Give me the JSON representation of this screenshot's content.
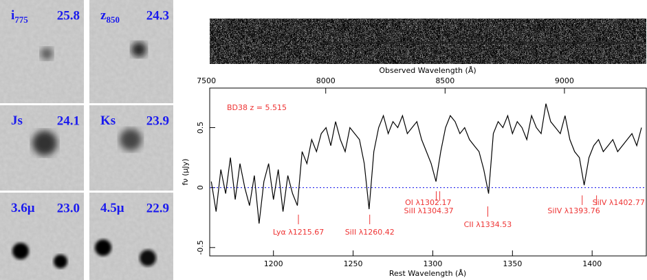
{
  "stamps": [
    {
      "name": "i",
      "sub": "775",
      "mag": "25.8"
    },
    {
      "name": "z",
      "sub": "850",
      "mag": "24.3"
    },
    {
      "name": "Js",
      "mag": "24.1"
    },
    {
      "name": "Ks",
      "mag": "23.9"
    },
    {
      "name": "3.6μ",
      "mag": "23.0"
    },
    {
      "name": "4.5μ",
      "mag": "22.9"
    }
  ],
  "chart_data": {
    "type": "line",
    "title": "BD38   z = 5.515",
    "xlabel": "Rest Wavelength (Å)",
    "x2label": "Observed Wavelength (Å)",
    "ylabel": "fν (μJy)",
    "xlim": [
      1160,
      1434
    ],
    "xticks": [
      1200,
      1250,
      1300,
      1350,
      1400
    ],
    "x2lim": [
      7514,
      9343
    ],
    "x2ticks": [
      7500,
      8000,
      8500,
      9000
    ],
    "ylim": [
      -0.57,
      0.83
    ],
    "yticks": [
      -0.5,
      0,
      0.5
    ],
    "hline": 0,
    "series": [
      {
        "color": "#000000",
        "x": [
          1161,
          1164,
          1167,
          1170,
          1173,
          1176,
          1179,
          1182,
          1185,
          1188,
          1191,
          1194,
          1197,
          1200,
          1203,
          1206,
          1209,
          1212,
          1215,
          1218,
          1221,
          1224,
          1227,
          1230,
          1233,
          1236,
          1239,
          1242,
          1245,
          1248,
          1251,
          1254,
          1257,
          1260,
          1263,
          1266,
          1269,
          1272,
          1275,
          1278,
          1281,
          1284,
          1287,
          1290,
          1293,
          1296,
          1299,
          1302,
          1305,
          1308,
          1311,
          1314,
          1317,
          1320,
          1323,
          1326,
          1329,
          1332,
          1335,
          1338,
          1341,
          1344,
          1347,
          1350,
          1353,
          1356,
          1359,
          1362,
          1365,
          1368,
          1371,
          1374,
          1377,
          1380,
          1383,
          1386,
          1389,
          1392,
          1395,
          1398,
          1401,
          1404,
          1407,
          1410,
          1413,
          1416,
          1419,
          1422,
          1425,
          1428,
          1431
        ],
        "values": [
          0.05,
          -0.2,
          0.15,
          -0.05,
          0.25,
          -0.1,
          0.2,
          0.0,
          -0.15,
          0.1,
          -0.3,
          0.05,
          0.2,
          -0.1,
          0.15,
          -0.2,
          0.1,
          -0.05,
          -0.15,
          0.3,
          0.2,
          0.4,
          0.3,
          0.45,
          0.5,
          0.35,
          0.55,
          0.4,
          0.3,
          0.5,
          0.45,
          0.4,
          0.2,
          -0.18,
          0.3,
          0.5,
          0.6,
          0.45,
          0.55,
          0.5,
          0.6,
          0.45,
          0.5,
          0.55,
          0.4,
          0.3,
          0.2,
          0.05,
          0.3,
          0.5,
          0.6,
          0.55,
          0.45,
          0.5,
          0.4,
          0.35,
          0.3,
          0.15,
          -0.05,
          0.45,
          0.55,
          0.5,
          0.6,
          0.45,
          0.55,
          0.5,
          0.4,
          0.6,
          0.5,
          0.45,
          0.7,
          0.55,
          0.5,
          0.45,
          0.6,
          0.4,
          0.3,
          0.25,
          0.02,
          0.25,
          0.35,
          0.4,
          0.3,
          0.35,
          0.4,
          0.3,
          0.35,
          0.4,
          0.45,
          0.35,
          0.5
        ]
      }
    ],
    "lines": [
      {
        "text": "Lyα λ1215.67",
        "x": 1215.67
      },
      {
        "text": "SiII λ1260.42",
        "x": 1260.42
      },
      {
        "text": "OI λ1302.17",
        "x": 1302.17
      },
      {
        "text": "SiII λ1304.37",
        "x": 1304.37
      },
      {
        "text": "CII λ1334.53",
        "x": 1334.53
      },
      {
        "text": "SiIV λ1393.76",
        "x": 1393.76
      },
      {
        "text": "SiIV λ1402.77",
        "x": 1402.77
      }
    ],
    "line_color": "#ee3333",
    "hline_color": "#3333ee"
  }
}
